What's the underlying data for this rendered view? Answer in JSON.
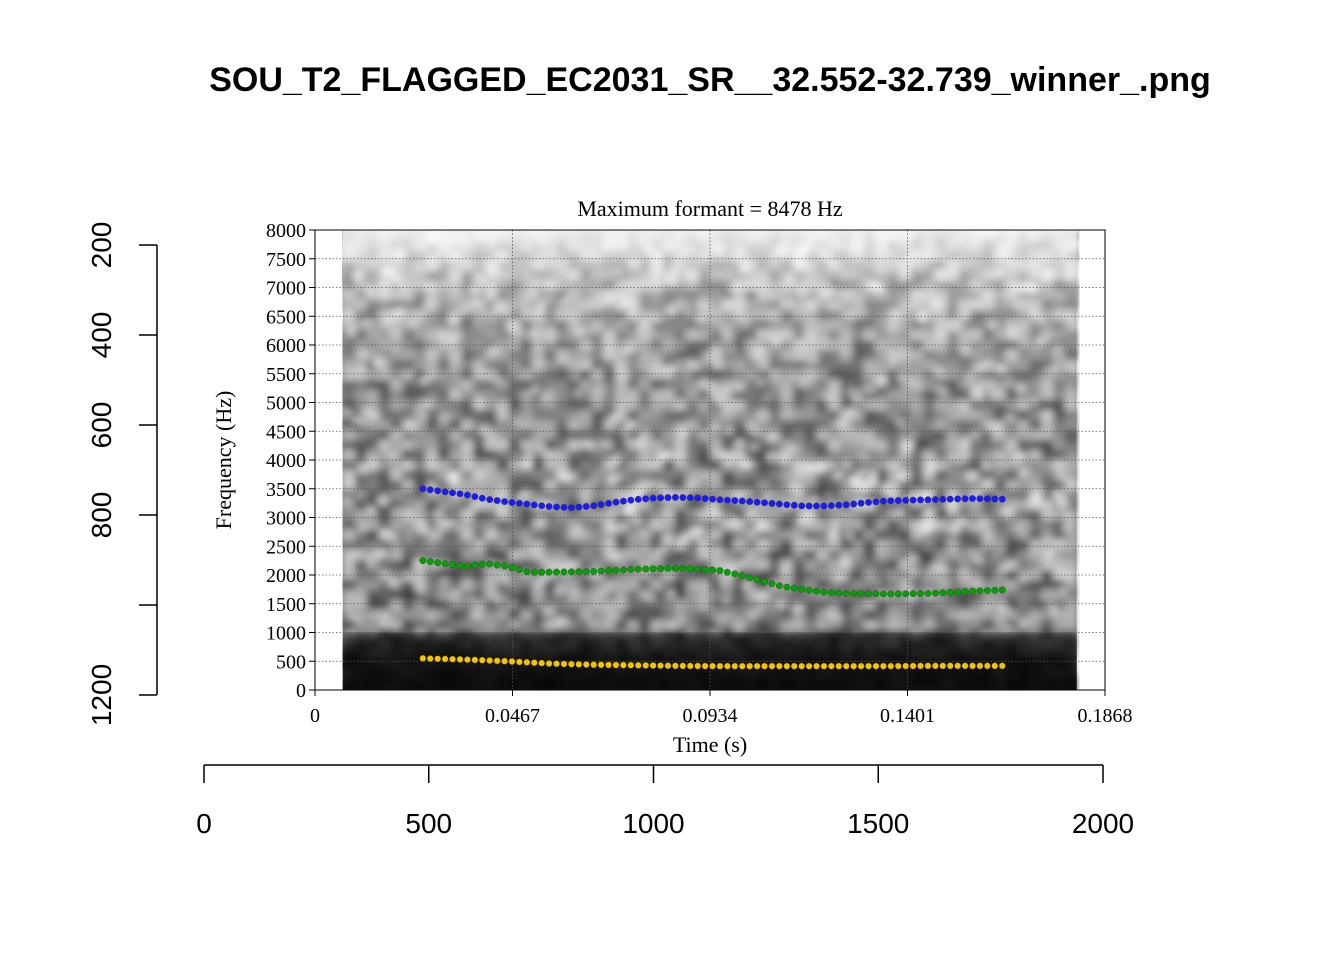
{
  "window": {
    "title": "SOU_T2_FLAGGED_EC2031_SR__32.552-32.739_winner_.png"
  },
  "chart_data": [
    {
      "type": "scatter",
      "title": "Maximum formant = 8478 Hz",
      "xlabel": "Time (s)",
      "ylabel": "Frequency (Hz)",
      "xlim": [
        0,
        0.1868
      ],
      "ylim": [
        0,
        8000
      ],
      "x_ticks": [
        "0",
        "0.0467",
        "0.0934",
        "0.1401",
        "0.1868"
      ],
      "y_ticks": [
        "0",
        "500",
        "1000",
        "1500",
        "2000",
        "2500",
        "3000",
        "3500",
        "4000",
        "4500",
        "5000",
        "5500",
        "6000",
        "6500",
        "7000",
        "7500",
        "8000"
      ],
      "grid": true,
      "background": "spectrogram (grayscale)",
      "spectrogram_time_range": [
        0.0066,
        0.1801
      ],
      "series": [
        {
          "color": "#f5c400",
          "x": [
            0.0255,
            0.0355,
            0.0455,
            0.0555,
            0.0655,
            0.0755,
            0.0855,
            0.0955,
            0.1055,
            0.1155,
            0.1255,
            0.1355,
            0.1455,
            0.1555,
            0.1625
          ],
          "y": [
            550,
            530,
            500,
            460,
            440,
            430,
            420,
            415,
            415,
            415,
            415,
            415,
            420,
            420,
            420
          ]
        },
        {
          "color": "#00a300",
          "x": [
            0.0255,
            0.0305,
            0.0355,
            0.0405,
            0.0455,
            0.0505,
            0.0555,
            0.0655,
            0.0755,
            0.0855,
            0.0955,
            0.1005,
            0.1055,
            0.1105,
            0.1155,
            0.1205,
            0.1255,
            0.1355,
            0.1455,
            0.1555,
            0.1625
          ],
          "y": [
            2250,
            2200,
            2150,
            2200,
            2150,
            2050,
            2050,
            2060,
            2100,
            2120,
            2080,
            2000,
            1900,
            1800,
            1750,
            1700,
            1680,
            1670,
            1680,
            1720,
            1740
          ]
        },
        {
          "color": "#1a1aff",
          "x": [
            0.0255,
            0.0305,
            0.0355,
            0.0405,
            0.0455,
            0.0505,
            0.0555,
            0.0605,
            0.0655,
            0.0705,
            0.0755,
            0.0805,
            0.0855,
            0.0905,
            0.0955,
            0.1005,
            0.1055,
            0.1105,
            0.1155,
            0.1205,
            0.1255,
            0.1305,
            0.1355,
            0.1405,
            0.1455,
            0.1505,
            0.1555,
            0.1625
          ],
          "y": [
            3500,
            3450,
            3400,
            3320,
            3270,
            3230,
            3190,
            3170,
            3200,
            3260,
            3310,
            3340,
            3350,
            3340,
            3310,
            3290,
            3260,
            3230,
            3200,
            3200,
            3220,
            3260,
            3290,
            3300,
            3310,
            3320,
            3330,
            3320
          ]
        }
      ]
    },
    {
      "type": "scatter",
      "title": "",
      "xlim": [
        0,
        2000
      ],
      "ylim": [
        200,
        1200
      ],
      "x_ticks": [
        "0",
        "500",
        "1000",
        "1500",
        "2000"
      ],
      "y_ticks": [
        "200",
        "400",
        "600",
        "800",
        "1200"
      ],
      "y_reversed": true
    }
  ]
}
